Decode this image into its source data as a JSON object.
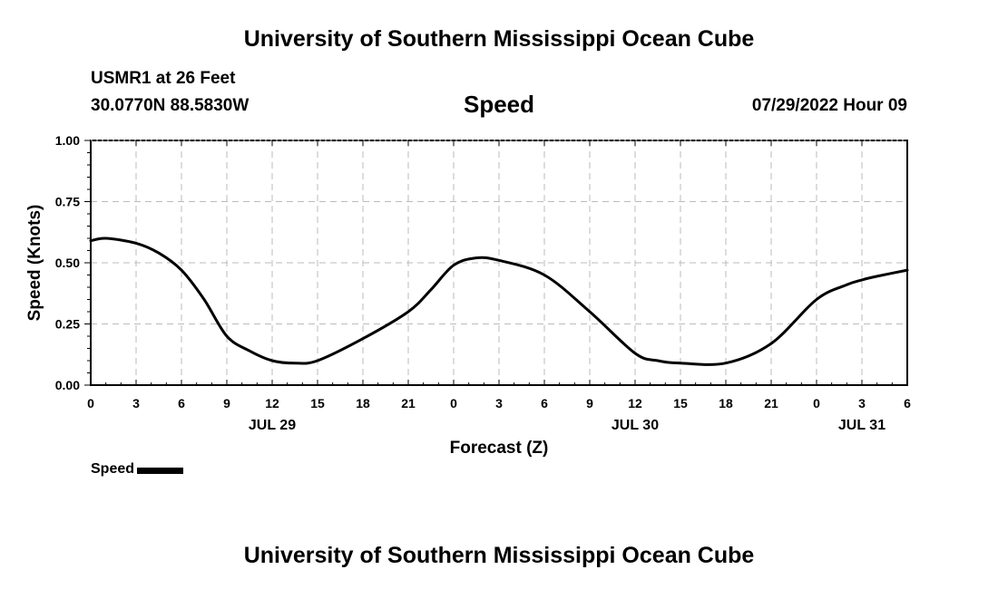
{
  "header": {
    "title": "University of Southern Mississippi Ocean Cube",
    "station": "USMR1 at 26 Feet",
    "coords": "30.0770N  88.5830W",
    "datetime": "07/29/2022 Hour 09"
  },
  "footer": {
    "title": "University of Southern Mississippi Ocean Cube"
  },
  "legend": {
    "label": "Speed"
  },
  "colors": {
    "line": "#000000",
    "grid": "#bbbbbb",
    "background": "#ffffff"
  },
  "chart_data": {
    "type": "line",
    "title": "Speed",
    "xlabel": "Forecast (Z)",
    "ylabel": "Speed (Knots)",
    "xlim": [
      0,
      54
    ],
    "ylim": [
      0,
      1
    ],
    "grid": true,
    "legend_position": "bottom-left",
    "x_ticks": [
      0,
      3,
      6,
      9,
      12,
      15,
      18,
      21,
      24,
      27,
      30,
      33,
      36,
      39,
      42,
      45,
      48,
      51,
      54
    ],
    "x_tick_labels": [
      "0",
      "3",
      "6",
      "9",
      "12",
      "15",
      "18",
      "21",
      "0",
      "3",
      "6",
      "9",
      "12",
      "15",
      "18",
      "21",
      "0",
      "3",
      "6"
    ],
    "y_ticks": [
      0,
      0.25,
      0.5,
      0.75,
      1.0
    ],
    "y_tick_labels": [
      "0.00",
      "0.25",
      "0.50",
      "0.75",
      "1.00"
    ],
    "date_labels": [
      {
        "x": 12,
        "label": "JUL 29"
      },
      {
        "x": 36,
        "label": "JUL 30"
      },
      {
        "x": 51,
        "label": "JUL 31"
      }
    ],
    "series": [
      {
        "name": "Speed",
        "x": [
          0,
          1,
          3,
          4.5,
          6,
          7.5,
          9,
          10.5,
          12,
          13.5,
          15,
          18,
          21,
          22.5,
          24,
          25.5,
          27,
          30,
          33,
          36,
          37.5,
          39,
          42,
          45,
          48,
          50,
          51,
          52,
          54
        ],
        "values": [
          0.59,
          0.6,
          0.58,
          0.54,
          0.47,
          0.35,
          0.2,
          0.14,
          0.1,
          0.09,
          0.1,
          0.19,
          0.3,
          0.39,
          0.49,
          0.52,
          0.51,
          0.45,
          0.3,
          0.13,
          0.1,
          0.09,
          0.09,
          0.17,
          0.35,
          0.41,
          0.43,
          0.445,
          0.47
        ]
      }
    ]
  }
}
